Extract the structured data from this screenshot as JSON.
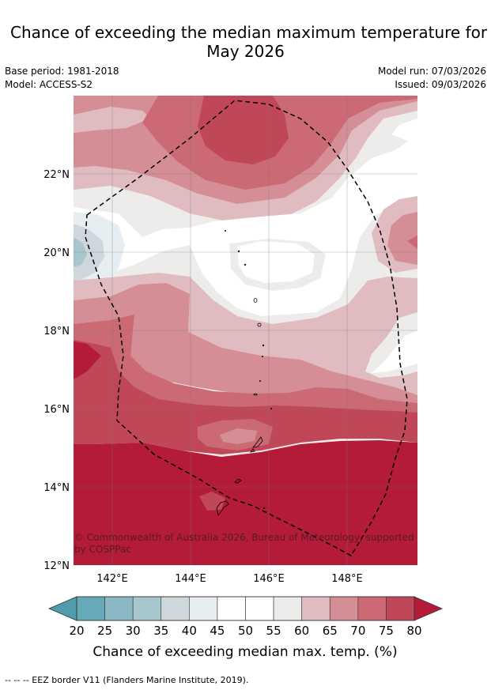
{
  "header": {
    "title_line1": "Chance of exceeding the median maximum temperature for",
    "title_line2": "May 2026",
    "base_period": "Base period: 1981-2018",
    "model": "Model: ACCESS-S2",
    "model_run": "Model run: 07/03/2026",
    "issued": "Issued: 09/03/2026"
  },
  "map": {
    "lat_ticks": [
      "22°N",
      "20°N",
      "18°N",
      "16°N",
      "14°N",
      "12°N"
    ],
    "lon_ticks": [
      "142°E",
      "144°E",
      "146°E",
      "148°E"
    ],
    "copyright_line1": "© Commonwealth of Australia 2026, Bureau of Meteorology, supported",
    "copyright_line2": "by COSPPac",
    "colors": {
      "c45_55": "#ffffff",
      "c55_60": "#eeecea",
      "c60_65": "#e0bcc1",
      "c65_70": "#d68e96",
      "c70_75": "#cb6a74",
      "c75_80": "#c04757",
      "c80": "#b31b39",
      "c35_40": "#ced8dc",
      "c40_45": "#e7eef1"
    }
  },
  "colorbar": {
    "labels": [
      "20",
      "25",
      "30",
      "35",
      "40",
      "45",
      "50",
      "55",
      "60",
      "65",
      "70",
      "75",
      "80"
    ],
    "colors": [
      "#66a9b8",
      "#8ab8c5",
      "#a8c7cd",
      "#ced8dc",
      "#e7eef1",
      "#ffffff",
      "#ffffff",
      "#eeecea",
      "#e0bcc1",
      "#d68e96",
      "#cb6a74",
      "#c04757"
    ],
    "low_color": "#4e9cac",
    "high_color": "#b31b39",
    "title": "Chance of exceeding median max. temp. (%)"
  },
  "footnote": "--  --  -- EEZ border V11 (Flanders Marine Institute, 2019)."
}
